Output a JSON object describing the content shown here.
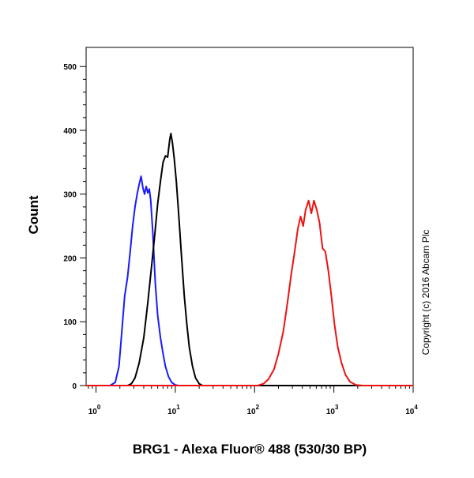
{
  "chart_data": {
    "type": "line",
    "title": "",
    "xlabel": "BRG1 - Alexa Fluor® 488 (530/30 BP)",
    "ylabel": "Count",
    "x_scale": "log",
    "xlim": [
      0.75,
      10000
    ],
    "ylim": [
      0,
      530
    ],
    "x_ticks": [
      {
        "value": 1,
        "base": "10",
        "exp": "0"
      },
      {
        "value": 10,
        "base": "10",
        "exp": "1"
      },
      {
        "value": 100,
        "base": "10",
        "exp": "2"
      },
      {
        "value": 1000,
        "base": "10",
        "exp": "3"
      },
      {
        "value": 10000,
        "base": "10",
        "exp": "4"
      }
    ],
    "y_ticks": [
      0,
      100,
      200,
      300,
      400,
      500
    ],
    "grid": false,
    "legend": "none",
    "annotation": "Copyright (c) 2016 Abcam Plc",
    "series": [
      {
        "color": "#1a1aff",
        "points": [
          [
            0.75,
            0
          ],
          [
            1.5,
            0
          ],
          [
            1.75,
            5
          ],
          [
            1.95,
            30
          ],
          [
            2.1,
            80
          ],
          [
            2.3,
            140
          ],
          [
            2.5,
            170
          ],
          [
            2.7,
            210
          ],
          [
            2.9,
            250
          ],
          [
            3.1,
            280
          ],
          [
            3.3,
            300
          ],
          [
            3.5,
            315
          ],
          [
            3.7,
            328
          ],
          [
            3.9,
            310
          ],
          [
            4.1,
            300
          ],
          [
            4.3,
            312
          ],
          [
            4.5,
            302
          ],
          [
            4.7,
            308
          ],
          [
            4.9,
            290
          ],
          [
            5.2,
            240
          ],
          [
            5.6,
            160
          ],
          [
            6.0,
            110
          ],
          [
            6.5,
            75
          ],
          [
            7.0,
            50
          ],
          [
            7.5,
            30
          ],
          [
            8.2,
            14
          ],
          [
            9.0,
            5
          ],
          [
            10.0,
            1
          ],
          [
            11,
            0
          ],
          [
            10000,
            0
          ]
        ]
      },
      {
        "color": "#000000",
        "points": [
          [
            0.75,
            0
          ],
          [
            2.5,
            0
          ],
          [
            2.8,
            3
          ],
          [
            3.1,
            12
          ],
          [
            3.5,
            35
          ],
          [
            4.0,
            75
          ],
          [
            4.5,
            130
          ],
          [
            5.0,
            185
          ],
          [
            5.5,
            235
          ],
          [
            6.0,
            285
          ],
          [
            6.5,
            320
          ],
          [
            7.0,
            350
          ],
          [
            7.5,
            360
          ],
          [
            8.0,
            358
          ],
          [
            8.5,
            385
          ],
          [
            8.8,
            395
          ],
          [
            9.2,
            380
          ],
          [
            9.7,
            355
          ],
          [
            10.3,
            320
          ],
          [
            11,
            270
          ],
          [
            12,
            200
          ],
          [
            13,
            140
          ],
          [
            14,
            95
          ],
          [
            15,
            60
          ],
          [
            16.5,
            30
          ],
          [
            18,
            12
          ],
          [
            20,
            3
          ],
          [
            22,
            0
          ],
          [
            10000,
            0
          ]
        ]
      },
      {
        "color": "#ee1111",
        "points": [
          [
            0.75,
            0
          ],
          [
            110,
            0
          ],
          [
            130,
            3
          ],
          [
            150,
            10
          ],
          [
            175,
            25
          ],
          [
            200,
            50
          ],
          [
            230,
            85
          ],
          [
            260,
            130
          ],
          [
            290,
            175
          ],
          [
            320,
            210
          ],
          [
            350,
            245
          ],
          [
            380,
            265
          ],
          [
            410,
            250
          ],
          [
            440,
            275
          ],
          [
            480,
            290
          ],
          [
            520,
            270
          ],
          [
            560,
            290
          ],
          [
            610,
            275
          ],
          [
            660,
            255
          ],
          [
            720,
            215
          ],
          [
            780,
            210
          ],
          [
            850,
            180
          ],
          [
            930,
            140
          ],
          [
            1020,
            95
          ],
          [
            1120,
            60
          ],
          [
            1250,
            35
          ],
          [
            1400,
            17
          ],
          [
            1600,
            6
          ],
          [
            1900,
            1
          ],
          [
            2300,
            0
          ],
          [
            10000,
            0
          ]
        ]
      }
    ]
  }
}
